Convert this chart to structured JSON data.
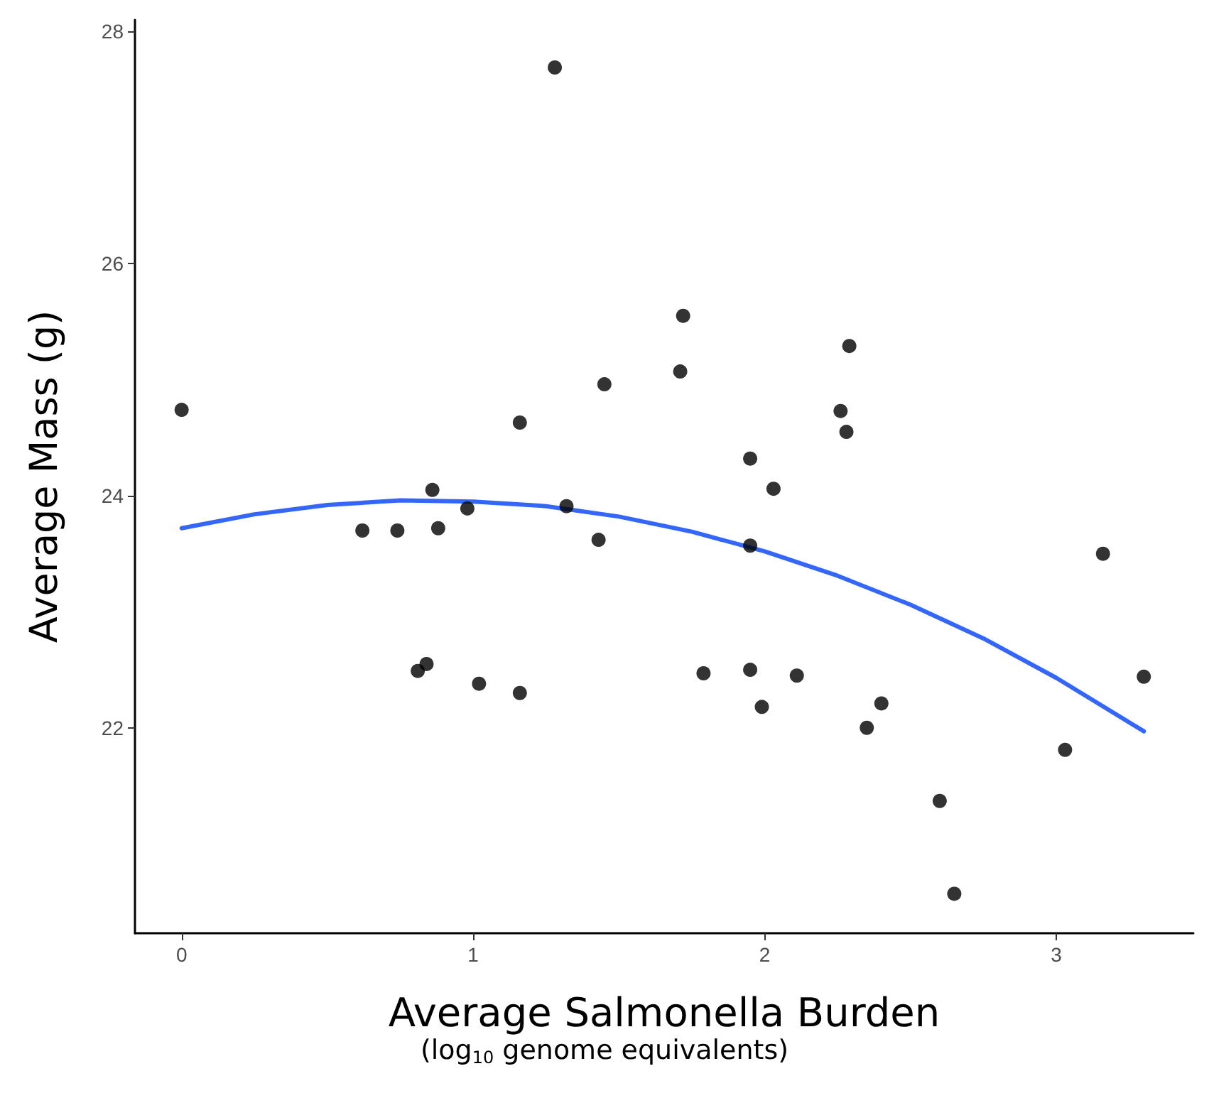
{
  "chart_data": {
    "type": "scatter",
    "xlabel": "Average Salmonella Burden",
    "ylabel": "Average Mass (g)",
    "annotations": [
      "(log$_{10}$ genome equivalents)"
    ],
    "xlim": [
      -0.16,
      3.47
    ],
    "xticks": [
      0,
      1,
      2,
      3
    ],
    "ylim": [
      20.23,
      28.1
    ],
    "yticks": [
      22,
      24,
      26,
      28
    ],
    "grid": false,
    "marker": "circle",
    "series": [
      {
        "type": "scatter",
        "color": "#000000",
        "x": [
          0,
          0.62,
          0.74,
          0.86,
          0.88,
          0.81,
          0.84,
          0.98,
          1.02,
          1.16,
          1.16,
          1.28,
          1.32,
          1.43,
          1.45,
          1.71,
          1.72,
          1.79,
          1.95,
          1.95,
          1.95,
          1.99,
          2.03,
          2.11,
          2.26,
          2.28,
          2.29,
          2.35,
          2.4,
          2.6,
          2.65,
          3.03,
          3.16,
          3.3
        ],
        "values": [
          24.74,
          23.7,
          23.7,
          24.05,
          23.72,
          22.49,
          22.55,
          23.89,
          22.38,
          24.63,
          22.3,
          27.69,
          23.91,
          23.62,
          24.96,
          25.07,
          25.55,
          22.47,
          23.57,
          24.32,
          22.5,
          22.18,
          24.06,
          22.45,
          24.73,
          24.55,
          25.29,
          22.0,
          22.21,
          21.37,
          20.57,
          21.81,
          23.5,
          22.44
        ]
      },
      {
        "type": "line",
        "color": "#3366ff",
        "marker": "none",
        "line_style": "solid",
        "x": [
          0,
          0.25,
          0.5,
          0.75,
          1.0,
          1.25,
          1.5,
          1.75,
          2.0,
          2.25,
          2.5,
          2.75,
          3.0,
          3.3
        ],
        "values": [
          23.72,
          23.84,
          23.92,
          23.96,
          23.95,
          23.91,
          23.82,
          23.69,
          23.52,
          23.31,
          23.06,
          22.77,
          22.43,
          21.97
        ]
      }
    ]
  }
}
